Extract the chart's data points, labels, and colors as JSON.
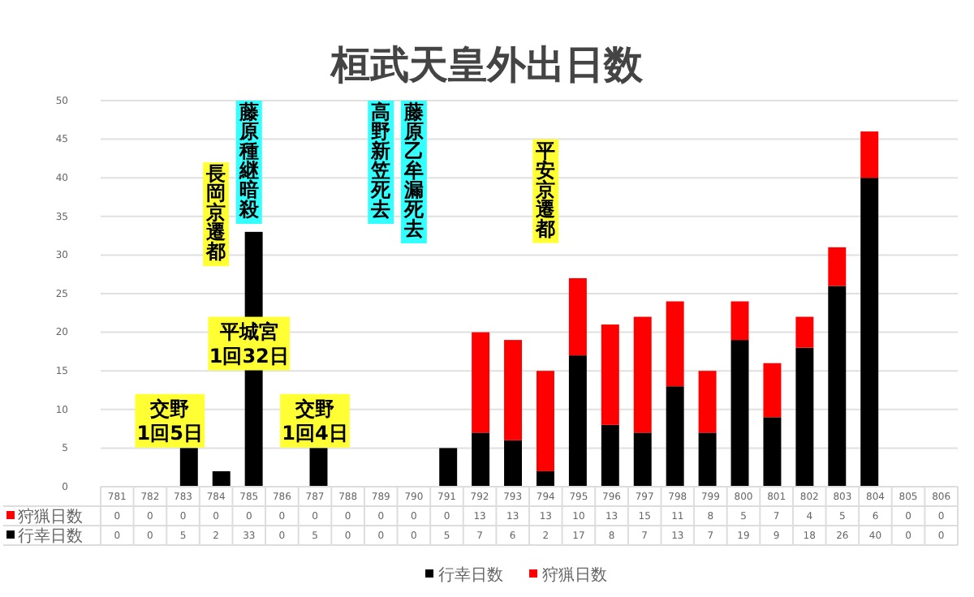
{
  "chart_data": {
    "type": "bar",
    "title": "桓武天皇外出日数",
    "stacked": true,
    "data_labels": true,
    "grid": "y",
    "legend": "bottom",
    "categories": [
      "781",
      "782",
      "783",
      "784",
      "785",
      "786",
      "787",
      "788",
      "789",
      "790",
      "791",
      "792",
      "793",
      "794",
      "795",
      "796",
      "797",
      "798",
      "799",
      "800",
      "801",
      "802",
      "803",
      "804",
      "805",
      "806"
    ],
    "series": [
      {
        "name": "行幸日数",
        "color": "#000000",
        "values": [
          0,
          0,
          5,
          2,
          33,
          0,
          5,
          0,
          0,
          0,
          5,
          7,
          6,
          2,
          17,
          8,
          7,
          13,
          7,
          19,
          9,
          18,
          26,
          40,
          0,
          0
        ]
      },
      {
        "name": "狩猟日数",
        "color": "#ff0000",
        "values": [
          0,
          0,
          0,
          0,
          0,
          0,
          0,
          0,
          0,
          0,
          0,
          13,
          13,
          13,
          10,
          13,
          15,
          11,
          8,
          5,
          7,
          4,
          5,
          6,
          0,
          0
        ]
      }
    ],
    "ylim": [
      0,
      50
    ],
    "yticks": [
      0,
      5,
      10,
      15,
      20,
      25,
      30,
      35,
      40,
      45,
      50
    ],
    "annotations": [
      "交野\n1回5日",
      "長岡京遷都",
      "藤原種継暗殺",
      "平城宮\n1回32日",
      "交野\n1回4日",
      "高野新笠死去",
      "藤原乙牟漏死去",
      "平安京遷都"
    ]
  }
}
